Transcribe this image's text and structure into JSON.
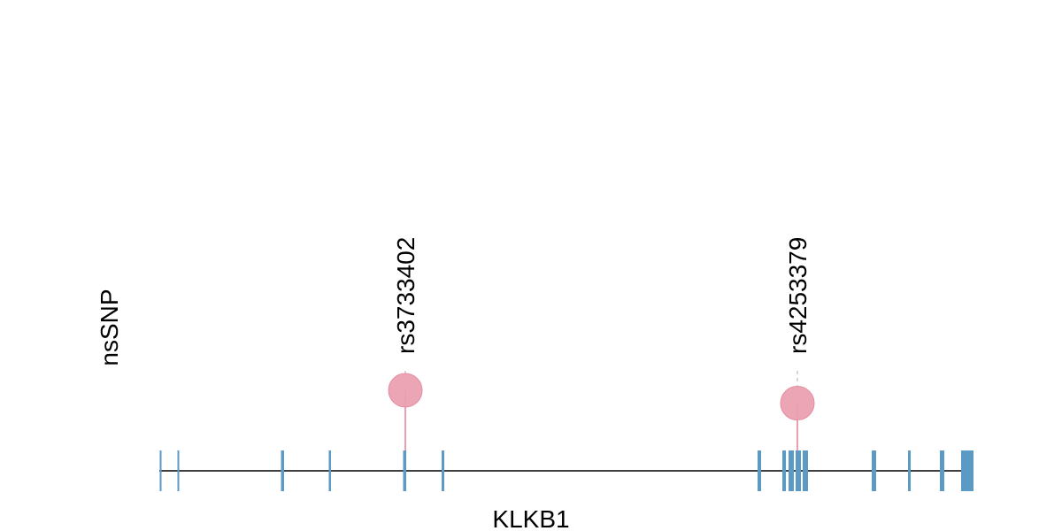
{
  "gene": {
    "name": "KLKB1",
    "line_color": "#000000",
    "exon_color": "#5b9ac5",
    "exons": [
      {
        "start": 180.5,
        "end": 182.5
      },
      {
        "start": 200.5,
        "end": 202.5
      },
      {
        "start": 317.5,
        "end": 321
      },
      {
        "start": 371.5,
        "end": 374
      },
      {
        "start": 455.5,
        "end": 459
      },
      {
        "start": 499,
        "end": 502
      },
      {
        "start": 856,
        "end": 860
      },
      {
        "start": 884,
        "end": 888
      },
      {
        "start": 891,
        "end": 897
      },
      {
        "start": 899,
        "end": 905
      },
      {
        "start": 907,
        "end": 913
      },
      {
        "start": 985,
        "end": 990
      },
      {
        "start": 1026,
        "end": 1029
      },
      {
        "start": 1062,
        "end": 1067
      },
      {
        "start": 1086,
        "end": 1100
      }
    ]
  },
  "track": {
    "label": "nsSNP"
  },
  "variants": [
    {
      "id": "rs3733402",
      "position": 458,
      "level": 1.0,
      "color": "#eba0b0"
    },
    {
      "id": "rs4253379",
      "position": 901,
      "level": 0.84,
      "color": "#eba0b0"
    }
  ]
}
